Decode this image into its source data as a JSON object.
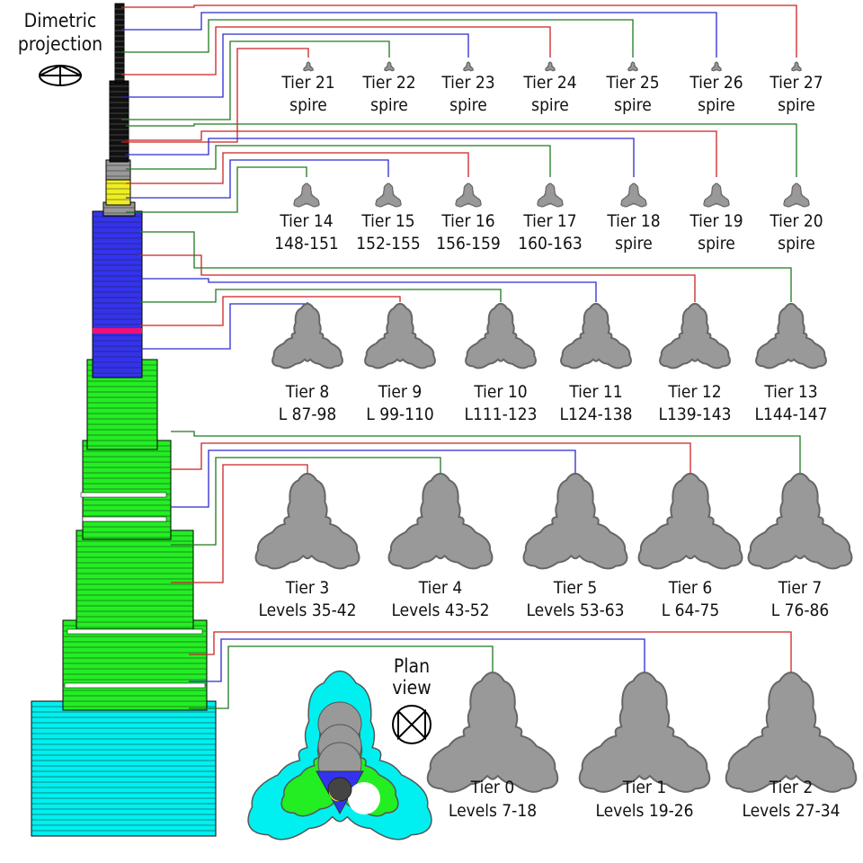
{
  "projection_title": [
    "Dimetric",
    "projection"
  ],
  "plan_title": [
    "Plan",
    "view"
  ],
  "colors": {
    "red": "#cc2222",
    "blue": "#2a2ad0",
    "green": "#1f7a1f",
    "shape_fill": "#999999",
    "shape_stroke": "#666666",
    "base": "#00f0f0",
    "lower": "#22ee22",
    "middle": "#3333ee",
    "crown": "#eeee22",
    "spire": "#111111"
  },
  "rows": [
    {
      "tiers": [
        {
          "name": "Tier 21",
          "levels": "spire"
        },
        {
          "name": "Tier 22",
          "levels": "spire"
        },
        {
          "name": "Tier 23",
          "levels": "spire"
        },
        {
          "name": "Tier 24",
          "levels": "spire"
        },
        {
          "name": "Tier 25",
          "levels": "spire"
        },
        {
          "name": "Tier 26",
          "levels": "spire"
        },
        {
          "name": "Tier 27",
          "levels": "spire"
        }
      ]
    },
    {
      "tiers": [
        {
          "name": "Tier 14",
          "levels": "148-151"
        },
        {
          "name": "Tier 15",
          "levels": "152-155"
        },
        {
          "name": "Tier 16",
          "levels": "156-159"
        },
        {
          "name": "Tier 17",
          "levels": "160-163"
        },
        {
          "name": "Tier 18",
          "levels": "spire"
        },
        {
          "name": "Tier 19",
          "levels": "spire"
        },
        {
          "name": "Tier 20",
          "levels": "spire"
        }
      ]
    },
    {
      "tiers": [
        {
          "name": "Tier 8",
          "levels": "L 87-98"
        },
        {
          "name": "Tier 9",
          "levels": "L 99-110"
        },
        {
          "name": "Tier 10",
          "levels": "L111-123"
        },
        {
          "name": "Tier 11",
          "levels": "L124-138"
        },
        {
          "name": "Tier 12",
          "levels": "L139-143"
        },
        {
          "name": "Tier 13",
          "levels": "L144-147"
        }
      ]
    },
    {
      "tiers": [
        {
          "name": "Tier 3",
          "levels": "Levels 35-42"
        },
        {
          "name": "Tier 4",
          "levels": "Levels 43-52"
        },
        {
          "name": "Tier 5",
          "levels": "Levels 53-63"
        },
        {
          "name": "Tier 6",
          "levels": "L 64-75"
        },
        {
          "name": "Tier 7",
          "levels": "L 76-86"
        }
      ]
    },
    {
      "tiers": [
        {
          "name": "Tier 0",
          "levels": "Levels 7-18"
        },
        {
          "name": "Tier 1",
          "levels": "Levels 19-26"
        },
        {
          "name": "Tier 2",
          "levels": "Levels 27-34"
        }
      ]
    }
  ]
}
